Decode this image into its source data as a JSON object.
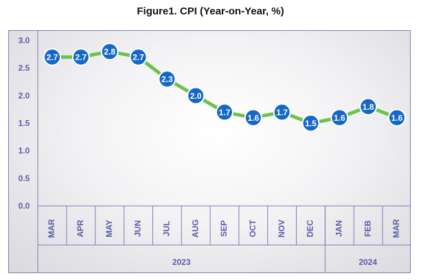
{
  "chart_data": {
    "type": "line",
    "title": "Figure1. CPI (Year-on-Year, %)",
    "categories": [
      "MAR",
      "APR",
      "MAY",
      "JUN",
      "JUL",
      "AUG",
      "SEP",
      "OCT",
      "NOV",
      "DEC",
      "JAN",
      "FEB",
      "MAR"
    ],
    "year_groups": [
      {
        "label": "2023",
        "count": 10
      },
      {
        "label": "2024",
        "count": 3
      }
    ],
    "values": [
      2.7,
      2.7,
      2.8,
      2.7,
      2.3,
      2.0,
      1.7,
      1.6,
      1.7,
      1.5,
      1.6,
      1.8,
      1.6
    ],
    "data_labels": [
      "2.7",
      "2.7",
      "2.8",
      "2.7",
      "2.3",
      "2.0",
      "1.7",
      "1.6",
      "1.7",
      "1.5",
      "1.6",
      "1.8",
      "1.6"
    ],
    "y_ticks": [
      "3.0",
      "2.5",
      "2.0",
      "1.5",
      "1.0",
      "0.5",
      "0.0"
    ],
    "ylim": [
      0,
      3.0
    ],
    "grid": false,
    "legend": "none",
    "colors": {
      "line": "#6cc24a",
      "marker": "#1668c7",
      "marker_border": "#ffffff",
      "axis_text": "#5b5ba8",
      "axis_line": "#7a7ab8"
    }
  }
}
